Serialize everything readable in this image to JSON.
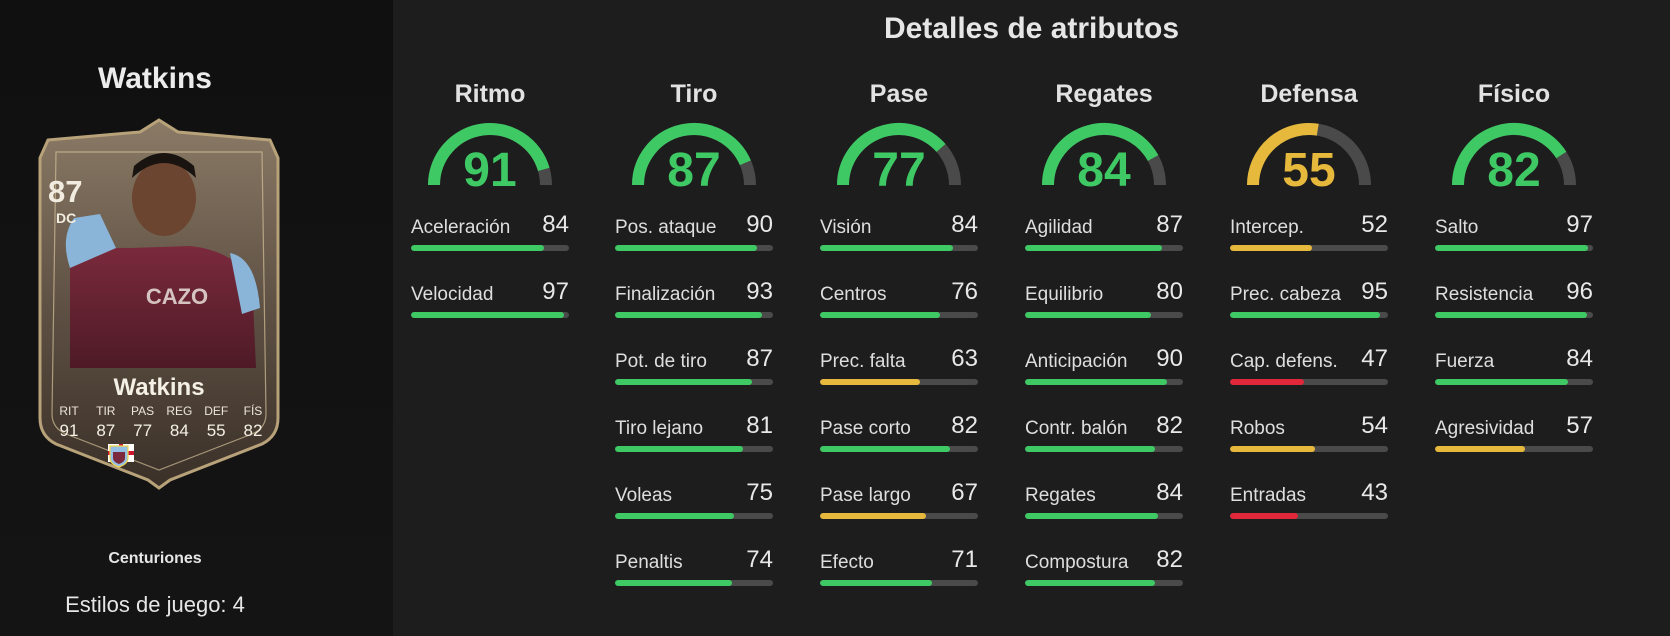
{
  "colors": {
    "green": "#3ec964",
    "yellow": "#e6b83c",
    "red": "#e0283a",
    "track": "#4a4a4a"
  },
  "player": {
    "name": "Watkins",
    "card": {
      "rating": "87",
      "position": "DC",
      "name": "Watkins",
      "stats": [
        {
          "label": "RIT",
          "value": "91"
        },
        {
          "label": "TIR",
          "value": "87"
        },
        {
          "label": "PAS",
          "value": "77"
        },
        {
          "label": "REG",
          "value": "84"
        },
        {
          "label": "DEF",
          "value": "55"
        },
        {
          "label": "FÍS",
          "value": "82"
        }
      ],
      "nation_icon": "england-flag-icon",
      "league_icon": "premier-league-icon",
      "club_icon": "aston-villa-crest-icon"
    },
    "card_type": "Centuriones",
    "playstyles": "Estilos de juego: 4"
  },
  "main": {
    "title": "Detalles de atributos",
    "categories": [
      {
        "name": "Ritmo",
        "value": 91,
        "color": "green",
        "attributes": [
          {
            "name": "Aceleración",
            "value": 84,
            "color": "green"
          },
          {
            "name": "Velocidad",
            "value": 97,
            "color": "green"
          }
        ]
      },
      {
        "name": "Tiro",
        "value": 87,
        "color": "green",
        "attributes": [
          {
            "name": "Pos. ataque",
            "value": 90,
            "color": "green"
          },
          {
            "name": "Finalización",
            "value": 93,
            "color": "green"
          },
          {
            "name": "Pot. de tiro",
            "value": 87,
            "color": "green"
          },
          {
            "name": "Tiro lejano",
            "value": 81,
            "color": "green"
          },
          {
            "name": "Voleas",
            "value": 75,
            "color": "green"
          },
          {
            "name": "Penaltis",
            "value": 74,
            "color": "green"
          }
        ]
      },
      {
        "name": "Pase",
        "value": 77,
        "color": "green",
        "attributes": [
          {
            "name": "Visión",
            "value": 84,
            "color": "green"
          },
          {
            "name": "Centros",
            "value": 76,
            "color": "green"
          },
          {
            "name": "Prec. falta",
            "value": 63,
            "color": "yellow"
          },
          {
            "name": "Pase corto",
            "value": 82,
            "color": "green"
          },
          {
            "name": "Pase largo",
            "value": 67,
            "color": "yellow"
          },
          {
            "name": "Efecto",
            "value": 71,
            "color": "green"
          }
        ]
      },
      {
        "name": "Regates",
        "value": 84,
        "color": "green",
        "attributes": [
          {
            "name": "Agilidad",
            "value": 87,
            "color": "green"
          },
          {
            "name": "Equilibrio",
            "value": 80,
            "color": "green"
          },
          {
            "name": "Anticipación",
            "value": 90,
            "color": "green"
          },
          {
            "name": "Contr. balón",
            "value": 82,
            "color": "green"
          },
          {
            "name": "Regates",
            "value": 84,
            "color": "green"
          },
          {
            "name": "Compostura",
            "value": 82,
            "color": "green"
          }
        ]
      },
      {
        "name": "Defensa",
        "value": 55,
        "color": "yellow",
        "attributes": [
          {
            "name": "Intercep.",
            "value": 52,
            "color": "yellow"
          },
          {
            "name": "Prec. cabeza",
            "value": 95,
            "color": "green"
          },
          {
            "name": "Cap. defens.",
            "value": 47,
            "color": "red"
          },
          {
            "name": "Robos",
            "value": 54,
            "color": "yellow"
          },
          {
            "name": "Entradas",
            "value": 43,
            "color": "red"
          }
        ]
      },
      {
        "name": "Físico",
        "value": 82,
        "color": "green",
        "attributes": [
          {
            "name": "Salto",
            "value": 97,
            "color": "green"
          },
          {
            "name": "Resistencia",
            "value": 96,
            "color": "green"
          },
          {
            "name": "Fuerza",
            "value": 84,
            "color": "green"
          },
          {
            "name": "Agresividad",
            "value": 57,
            "color": "yellow"
          }
        ]
      }
    ]
  }
}
